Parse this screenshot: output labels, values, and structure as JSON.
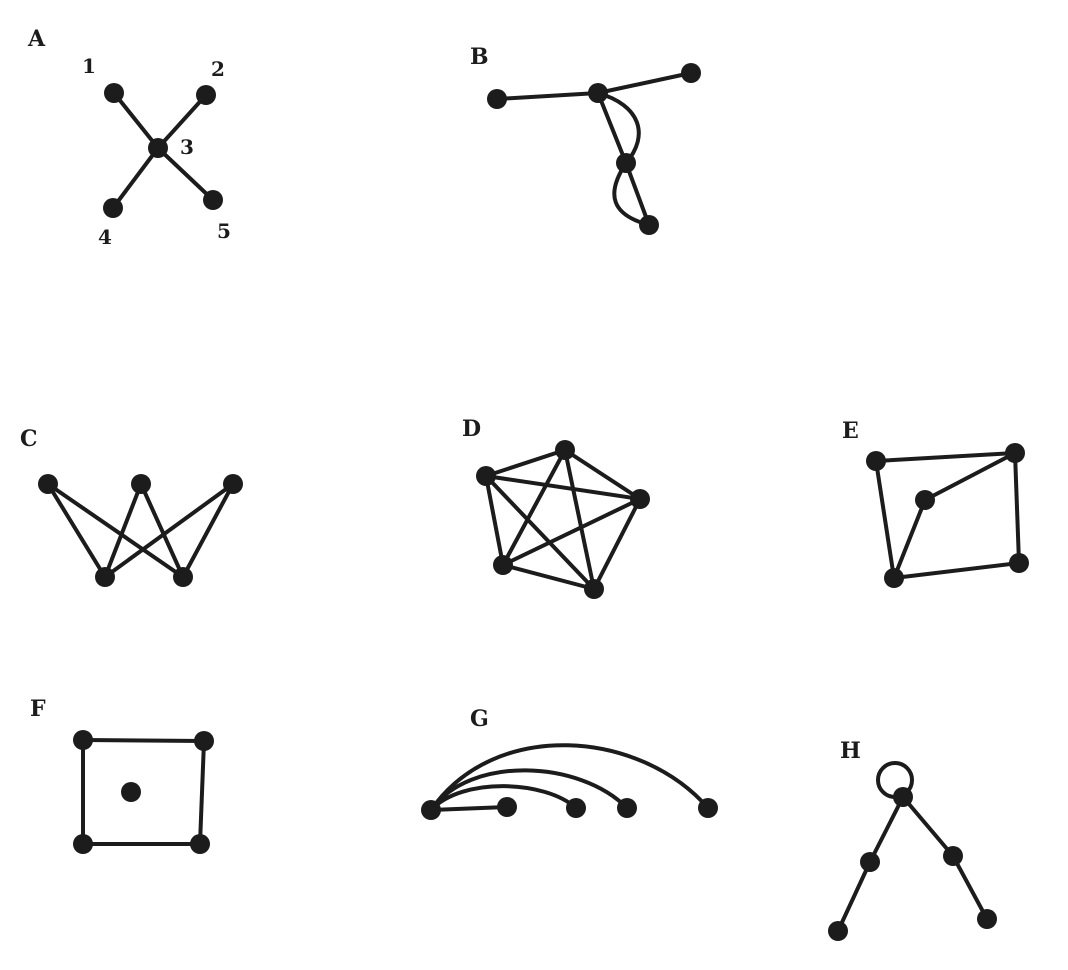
{
  "colors": {
    "ink": "#1c1c1c",
    "background": "#ffffff"
  },
  "panels": {
    "A": {
      "label": "A",
      "node_labels": [
        "1",
        "2",
        "3",
        "4",
        "5"
      ]
    },
    "B": {
      "label": "B"
    },
    "C": {
      "label": "C"
    },
    "D": {
      "label": "D"
    },
    "E": {
      "label": "E"
    },
    "F": {
      "label": "F"
    },
    "G": {
      "label": "G"
    },
    "H": {
      "label": "H"
    }
  }
}
